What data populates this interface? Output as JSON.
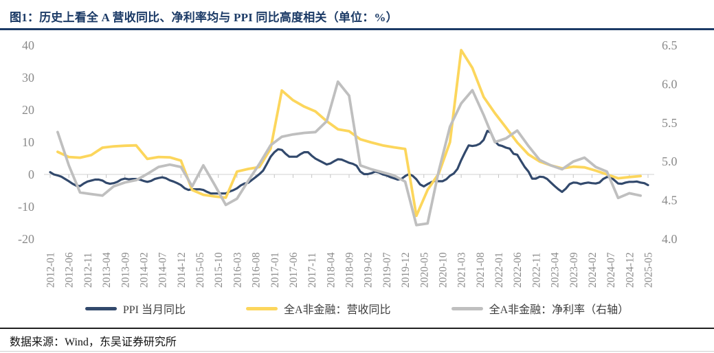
{
  "title": {
    "text": "图1：历史上看全 A 营收同比、净利率均与 PPI 同比高度相关（单位：%）"
  },
  "footer": {
    "source": "数据来源：Wind，东吴证券研究所"
  },
  "colors": {
    "title_navy": "#1B3A66",
    "ppi_line": "#32496C",
    "revenue_line": "#FCD65C",
    "margin_line": "#BFBFBF",
    "axis_text": "#8A8A8A",
    "zero_line": "#D9D9D9",
    "tick_mark": "#C4C4C4"
  },
  "chart_data": {
    "type": "line",
    "title": "历史上看全A营收同比、净利率均与PPI同比高度相关",
    "unit": "%",
    "grid": "zero-line-only",
    "legend_position": "bottom-center",
    "x_start": "2012-01",
    "x_end": "2025-05",
    "x_tick_labels": [
      "2012-01",
      "2012-06",
      "2012-11",
      "2013-04",
      "2013-09",
      "2014-02",
      "2014-07",
      "2014-12",
      "2015-05",
      "2015-10",
      "2016-03",
      "2016-08",
      "2017-01",
      "2017-06",
      "2017-11",
      "2018-04",
      "2018-09",
      "2019-02",
      "2019-07",
      "2019-12",
      "2020-05",
      "2020-10",
      "2021-03",
      "2021-08",
      "2022-01",
      "2022-06",
      "2022-11",
      "2023-04",
      "2023-09",
      "2024-02",
      "2024-07",
      "2024-12",
      "2025-05"
    ],
    "x_tick_month_step": 5,
    "left_axis": {
      "min": -20,
      "max": 40,
      "ticks": [
        40,
        30,
        20,
        10,
        0,
        -10,
        -20
      ]
    },
    "right_axis": {
      "min": 4.0,
      "max": 6.5,
      "ticks": [
        6.5,
        6.0,
        5.5,
        5.0,
        4.5,
        4.0
      ]
    },
    "series": [
      {
        "name": "PPI 当月同比",
        "axis": "left",
        "color": "#32496C",
        "stroke_width": 3.2,
        "start_month_index": 0,
        "month_step": 1,
        "values": [
          0.7,
          0.0,
          -0.3,
          -0.7,
          -1.4,
          -2.1,
          -2.9,
          -3.5,
          -3.6,
          -2.8,
          -2.2,
          -1.9,
          -1.6,
          -1.6,
          -1.9,
          -2.6,
          -2.9,
          -2.7,
          -2.3,
          -1.6,
          -1.3,
          -1.5,
          -1.4,
          -1.4,
          -1.6,
          -2.0,
          -2.3,
          -2.0,
          -1.4,
          -1.1,
          -0.9,
          -1.2,
          -1.8,
          -2.2,
          -2.7,
          -3.3,
          -4.3,
          -4.8,
          -4.6,
          -4.6,
          -4.6,
          -4.8,
          -5.4,
          -5.9,
          -5.9,
          -5.9,
          -5.9,
          -5.9,
          -5.3,
          -4.9,
          -4.3,
          -3.4,
          -2.8,
          -2.6,
          -1.7,
          -0.8,
          0.1,
          1.2,
          3.3,
          5.5,
          6.9,
          7.8,
          7.6,
          6.4,
          5.5,
          5.5,
          5.5,
          6.3,
          6.9,
          6.9,
          5.8,
          4.9,
          4.3,
          3.7,
          3.1,
          3.4,
          4.1,
          4.7,
          4.6,
          4.1,
          3.6,
          3.3,
          2.7,
          0.9,
          0.1,
          0.1,
          0.4,
          0.9,
          0.6,
          0.0,
          -0.3,
          -0.8,
          -1.2,
          -1.6,
          -1.4,
          -0.5,
          0.1,
          -0.4,
          -1.5,
          -3.1,
          -3.7,
          -3.0,
          -2.4,
          -2.0,
          -2.1,
          -2.1,
          -1.5,
          -0.4,
          0.3,
          1.7,
          4.4,
          6.8,
          9.0,
          8.8,
          9.0,
          9.5,
          10.7,
          13.5,
          12.9,
          10.3,
          9.1,
          8.8,
          8.3,
          8.0,
          6.4,
          6.1,
          4.2,
          2.3,
          0.9,
          -1.3,
          -1.3,
          -0.7,
          -0.8,
          -1.4,
          -2.5,
          -3.6,
          -4.6,
          -5.4,
          -4.4,
          -3.0,
          -2.5,
          -2.6,
          -3.0,
          -2.7,
          -2.5,
          -2.7,
          -2.8,
          -2.5,
          -1.4,
          -0.8,
          -0.8,
          -1.8,
          -2.8,
          -2.9,
          -2.5,
          -2.3,
          -2.3,
          -2.2,
          -2.5,
          -2.7,
          -3.3
        ]
      },
      {
        "name": "全A非金融：营收同比",
        "axis": "left",
        "color": "#FCD65C",
        "stroke_width": 3.8,
        "start_month_index": 2,
        "month_step": 3,
        "values": [
          7.0,
          5.4,
          5.2,
          6.0,
          8.3,
          8.7,
          8.9,
          9.0,
          4.8,
          5.4,
          5.3,
          4.3,
          -4.8,
          -6.3,
          -6.8,
          -7.2,
          0.9,
          1.7,
          2.3,
          8.0,
          26.0,
          23.0,
          21.0,
          19.5,
          16.5,
          14.0,
          13.4,
          10.9,
          9.9,
          9.0,
          8.4,
          7.9,
          -12.8,
          -4.8,
          0.3,
          10.0,
          38.5,
          33.0,
          24.0,
          19.0,
          14.5,
          9.9,
          6.2,
          4.0,
          2.8,
          1.9,
          2.4,
          2.2,
          1.2,
          0.0,
          -1.2,
          -0.8,
          -0.5
        ]
      },
      {
        "name": "全A非金融：净利率（右轴）",
        "axis": "right",
        "color": "#BFBFBF",
        "stroke_width": 3.8,
        "start_month_index": 2,
        "month_step": 3,
        "values": [
          5.38,
          4.95,
          4.6,
          4.58,
          4.56,
          4.68,
          4.73,
          4.76,
          4.84,
          4.93,
          4.96,
          4.93,
          4.68,
          4.95,
          4.7,
          4.44,
          4.52,
          4.75,
          4.97,
          5.21,
          5.32,
          5.35,
          5.37,
          5.38,
          5.52,
          6.03,
          5.85,
          4.95,
          4.9,
          4.86,
          4.82,
          4.74,
          4.18,
          4.2,
          4.88,
          5.45,
          5.75,
          5.92,
          5.6,
          5.25,
          5.3,
          5.4,
          5.2,
          5.02,
          4.95,
          4.9,
          5.0,
          5.05,
          4.93,
          4.87,
          4.53,
          4.59,
          4.56
        ]
      }
    ]
  }
}
